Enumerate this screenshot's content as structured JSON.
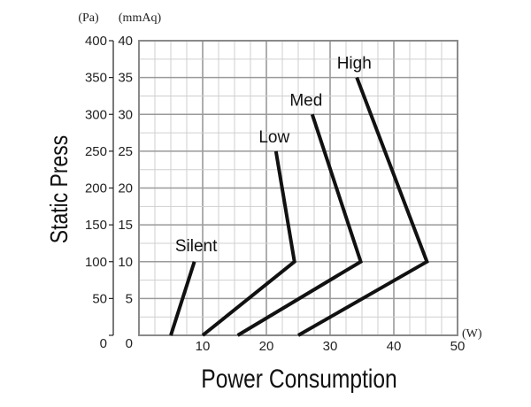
{
  "chart_data": {
    "type": "line",
    "title": "",
    "xlabel": "Power Consumption",
    "ylabel": "Static Press",
    "x_unit": "(W)",
    "y_unit_left": "(Pa)",
    "y_unit_right": "(mmAq)",
    "xlim": [
      0,
      50
    ],
    "ylim": [
      0,
      40
    ],
    "x_ticks": [
      0,
      10,
      20,
      30,
      40,
      50
    ],
    "y_ticks_mmaq": [
      0,
      5,
      10,
      15,
      20,
      25,
      30,
      35,
      40
    ],
    "y_ticks_pa": [
      0,
      50,
      100,
      150,
      200,
      250,
      300,
      350,
      400
    ],
    "grid": true,
    "series": [
      {
        "name": "Silent",
        "points": [
          [
            5.0,
            0
          ],
          [
            8.7,
            10
          ]
        ]
      },
      {
        "name": "Low",
        "points": [
          [
            10.0,
            0
          ],
          [
            24.4,
            10
          ],
          [
            21.5,
            25
          ]
        ]
      },
      {
        "name": "Med",
        "points": [
          [
            15.5,
            0
          ],
          [
            34.8,
            10
          ],
          [
            27.2,
            30
          ]
        ]
      },
      {
        "name": "High",
        "points": [
          [
            25.0,
            0
          ],
          [
            45.2,
            10
          ],
          [
            34.2,
            35
          ]
        ]
      }
    ]
  }
}
